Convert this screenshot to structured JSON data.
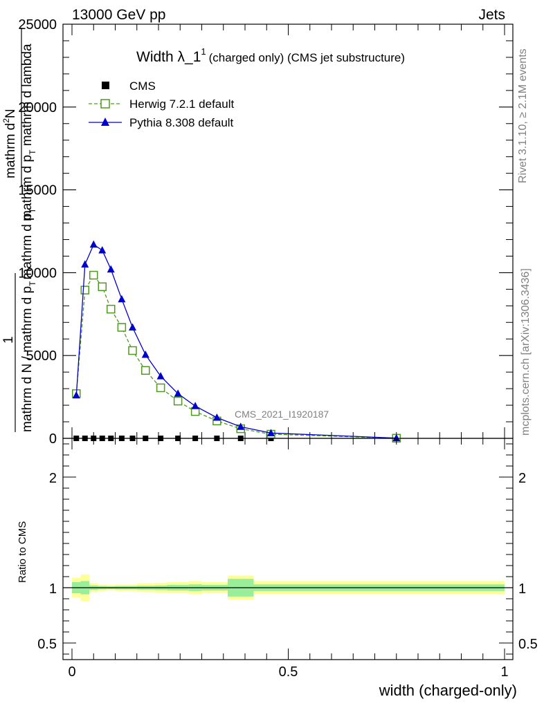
{
  "header": {
    "left": "13000 GeV pp",
    "right": "Jets"
  },
  "side": {
    "rivet": "Rivet 3.1.10, ≥ 2.1M events",
    "mcplots": "mcplots.cern.ch [arXiv:1306.3436]"
  },
  "chart_data": [
    {
      "type": "line",
      "title_main": "Width λ_1",
      "title_sup": "1",
      "title_rest": "(charged only) (CMS jet substructure)",
      "ylabel_top_num": "mathrm d",
      "ylabel_top_sup": "2",
      "ylabel_top_num2": "N",
      "ylabel_top_den_a": "mathrm d p",
      "ylabel_top_den_sub": "T",
      "ylabel_top_den_b": " mathrm d lambda",
      "ylabel_frac_1": "1",
      "ylabel_bot_a": "mathrm d N / mathrm d p",
      "ylabel_bot_sub": "T",
      "ylabel_bot_b": "mathrm d p",
      "ylabel_bot_sub2": "T",
      "watermark": "CMS_2021_I1920187",
      "xlim": [
        0,
        1
      ],
      "ylim": [
        0,
        25000
      ],
      "yticks": [
        0,
        5000,
        10000,
        15000,
        20000,
        25000
      ],
      "ytick_labels": [
        "0",
        "5000",
        "10000",
        "15000",
        "20000",
        "25000"
      ],
      "legend": [
        {
          "name": "CMS",
          "color": "#000000",
          "marker": "square"
        },
        {
          "name": "Herwig 7.2.1 default",
          "color": "#4d9a1c",
          "marker": "open-square"
        },
        {
          "name": "Pythia 8.308 default",
          "color": "#0000cc",
          "marker": "triangle"
        }
      ],
      "series": [
        {
          "name": "CMS",
          "x": [
            0.01,
            0.03,
            0.05,
            0.07,
            0.09,
            0.115,
            0.14,
            0.17,
            0.205,
            0.245,
            0.285,
            0.335,
            0.39,
            0.46
          ],
          "y": [
            0,
            0,
            0,
            0,
            0,
            0,
            0,
            0,
            0,
            0,
            0,
            0,
            0,
            0
          ]
        },
        {
          "name": "Herwig 7.2.1 default",
          "x": [
            0.01,
            0.03,
            0.05,
            0.07,
            0.09,
            0.115,
            0.14,
            0.17,
            0.205,
            0.245,
            0.285,
            0.335,
            0.39,
            0.46,
            0.75
          ],
          "y": [
            2700,
            8950,
            9850,
            9150,
            7800,
            6700,
            5300,
            4100,
            3050,
            2250,
            1620,
            1050,
            580,
            250,
            10
          ]
        },
        {
          "name": "Pythia 8.308 default",
          "x": [
            0.01,
            0.03,
            0.05,
            0.07,
            0.09,
            0.115,
            0.14,
            0.17,
            0.205,
            0.245,
            0.285,
            0.335,
            0.39,
            0.46,
            0.75
          ],
          "y": [
            2600,
            10500,
            11700,
            11350,
            10200,
            8400,
            6700,
            5050,
            3750,
            2700,
            1950,
            1250,
            700,
            320,
            15
          ]
        }
      ]
    },
    {
      "type": "area",
      "ylabel": "Ratio to CMS",
      "xlabel": "width (charged-only)",
      "xlim": [
        0,
        1
      ],
      "ylim": [
        0.35,
        2.35
      ],
      "yticks": [
        0.5,
        1,
        2
      ],
      "ytick_labels": [
        "0.5",
        "1",
        "2"
      ],
      "xticks": [
        0,
        0.5,
        1
      ],
      "xtick_labels": [
        "0",
        "0.5",
        "1"
      ],
      "bins": [
        {
          "lo": 0.0,
          "hi": 0.02,
          "stat": 0.05,
          "total": 0.09
        },
        {
          "lo": 0.02,
          "hi": 0.04,
          "stat": 0.06,
          "total": 0.12
        },
        {
          "lo": 0.04,
          "hi": 0.06,
          "stat": 0.02,
          "total": 0.04
        },
        {
          "lo": 0.06,
          "hi": 0.08,
          "stat": 0.015,
          "total": 0.03
        },
        {
          "lo": 0.08,
          "hi": 0.1,
          "stat": 0.012,
          "total": 0.025
        },
        {
          "lo": 0.1,
          "hi": 0.13,
          "stat": 0.015,
          "total": 0.03
        },
        {
          "lo": 0.13,
          "hi": 0.15,
          "stat": 0.015,
          "total": 0.03
        },
        {
          "lo": 0.15,
          "hi": 0.19,
          "stat": 0.018,
          "total": 0.04
        },
        {
          "lo": 0.19,
          "hi": 0.22,
          "stat": 0.02,
          "total": 0.045
        },
        {
          "lo": 0.22,
          "hi": 0.27,
          "stat": 0.025,
          "total": 0.05
        },
        {
          "lo": 0.27,
          "hi": 0.3,
          "stat": 0.03,
          "total": 0.06
        },
        {
          "lo": 0.3,
          "hi": 0.36,
          "stat": 0.025,
          "total": 0.05
        },
        {
          "lo": 0.36,
          "hi": 0.42,
          "stat": 0.08,
          "total": 0.11
        },
        {
          "lo": 0.42,
          "hi": 1.0,
          "stat": 0.03,
          "total": 0.06
        }
      ]
    }
  ]
}
